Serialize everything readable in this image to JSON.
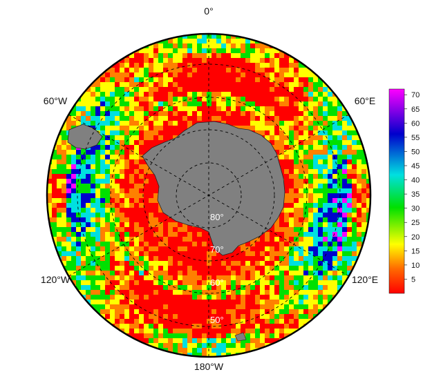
{
  "map": {
    "projection": "south-polar stereographic",
    "longitude_labels": {
      "top": "0°",
      "upper_right": "60°E",
      "lower_right": "120°E",
      "bottom": "180°W",
      "lower_left": "120°W",
      "upper_left": "60°W"
    },
    "latitude_labels": [
      "80°",
      "70°",
      "60°",
      "50°"
    ],
    "land_color": "#808080",
    "grid_style": "dashed"
  },
  "colorbar": {
    "ticks": [
      "70",
      "65",
      "60",
      "55",
      "50",
      "45",
      "40",
      "35",
      "30",
      "25",
      "20",
      "15",
      "10",
      "5"
    ],
    "min": 0,
    "max": 72,
    "palette": [
      "#ff0000",
      "#ff8000",
      "#ffff00",
      "#00e000",
      "#00e0e0",
      "#0000cc",
      "#ff00ff"
    ]
  }
}
